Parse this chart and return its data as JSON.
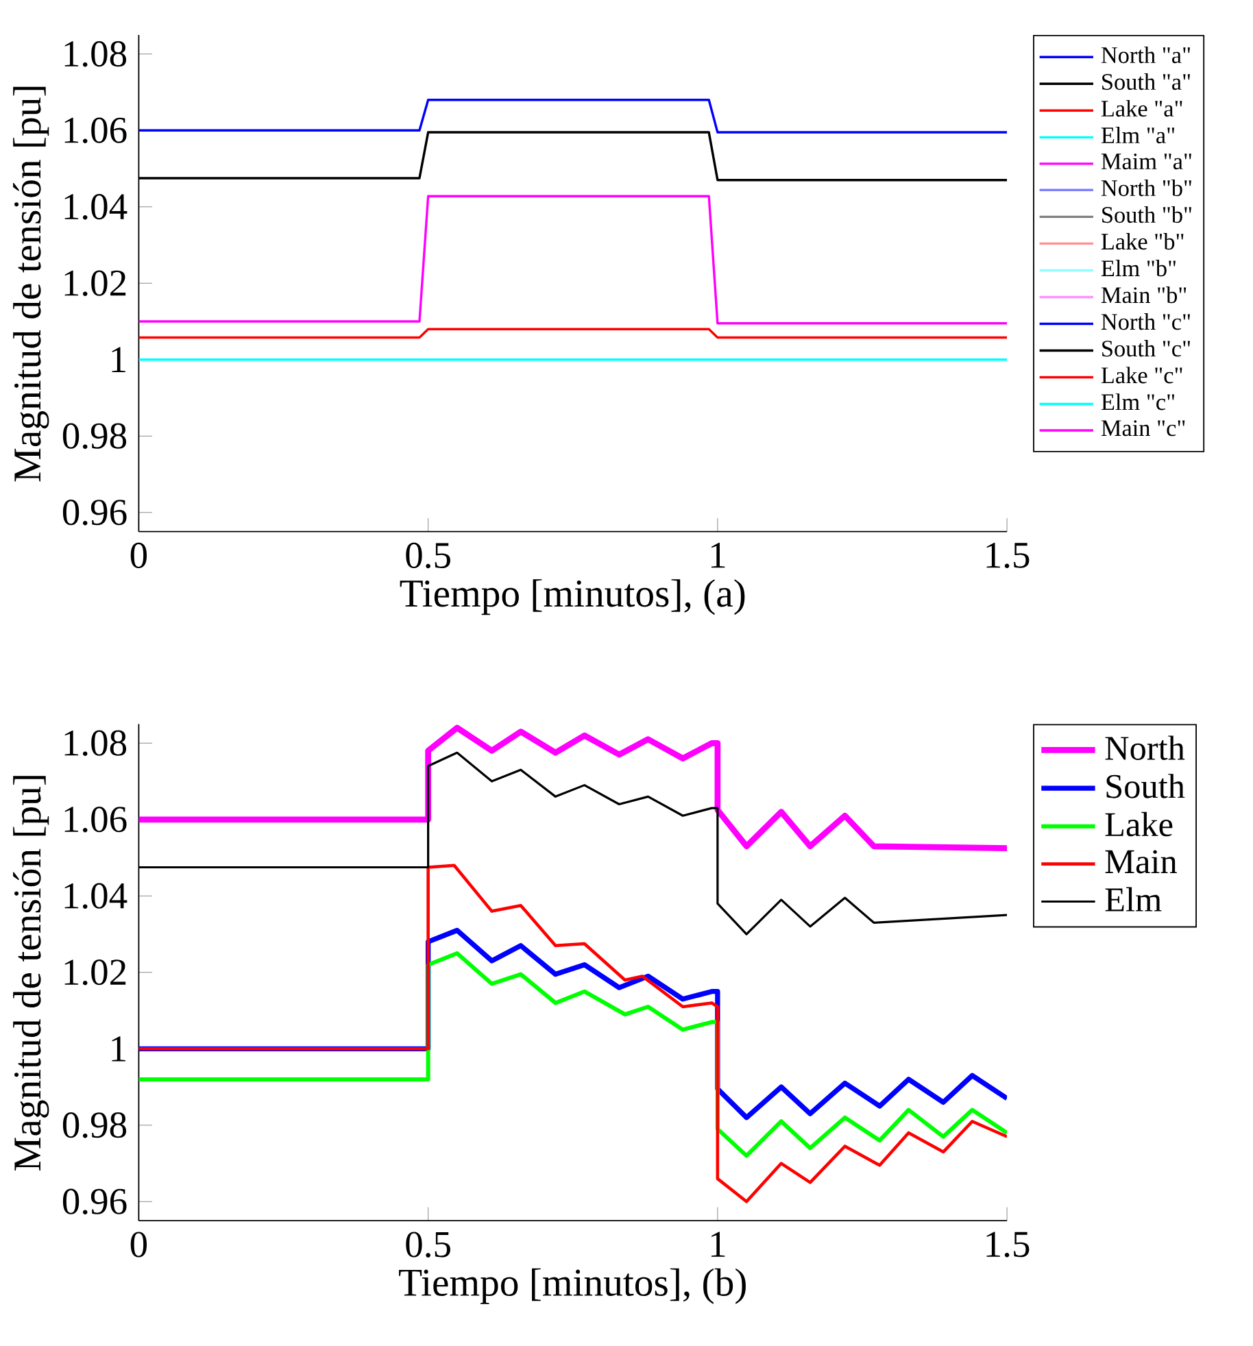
{
  "chart_data": [
    {
      "type": "line",
      "xlabel": "Tiempo [minutos],  (a)",
      "ylabel": "Magnitud de tensión [pu]",
      "xlim": [
        0,
        1.5
      ],
      "ylim": [
        0.955,
        1.085
      ],
      "xticks": [
        0,
        0.5,
        1,
        1.5
      ],
      "yticks": [
        0.96,
        0.98,
        1,
        1.02,
        1.04,
        1.06,
        1.08
      ],
      "legend": "right",
      "series": [
        {
          "name": "North \"a\"",
          "color": "#0000ff",
          "x": [
            0,
            0.485,
            0.5,
            0.985,
            1.0,
            1.5
          ],
          "values": [
            1.06,
            1.06,
            1.068,
            1.068,
            1.0595,
            1.0595
          ]
        },
        {
          "name": "South \"a\"",
          "color": "#000000",
          "x": [
            0,
            0.485,
            0.5,
            0.985,
            1.0,
            1.5
          ],
          "values": [
            1.0475,
            1.0475,
            1.0595,
            1.0595,
            1.047,
            1.047
          ]
        },
        {
          "name": "Lake \"a\"",
          "color": "#ff0000",
          "x": [
            0,
            0.485,
            0.5,
            0.985,
            1.0,
            1.5
          ],
          "values": [
            1.0058,
            1.0058,
            1.008,
            1.008,
            1.0058,
            1.0058
          ]
        },
        {
          "name": "Elm \"a\"",
          "color": "#00ffff",
          "x": [
            0,
            1.5
          ],
          "values": [
            1.0,
            1.0
          ]
        },
        {
          "name": "Maim \"a\"",
          "color": "#ff00ff",
          "x": [
            0,
            0.485,
            0.5,
            0.985,
            1.0,
            1.5
          ],
          "values": [
            1.01,
            1.01,
            1.0428,
            1.0428,
            1.0095,
            1.0095
          ]
        },
        {
          "name": "North \"b\"",
          "color": "#8080ff"
        },
        {
          "name": "South \"b\"",
          "color": "#808080"
        },
        {
          "name": "Lake \"b\"",
          "color": "#ff9090"
        },
        {
          "name": "Elm \"b\"",
          "color": "#90ffff"
        },
        {
          "name": "Main \"b\"",
          "color": "#ff90ff"
        },
        {
          "name": "North \"c\"",
          "color": "#0000ff"
        },
        {
          "name": "South \"c\"",
          "color": "#000000"
        },
        {
          "name": "Lake \"c\"",
          "color": "#ff0000"
        },
        {
          "name": "Elm \"c\"",
          "color": "#00ffff"
        },
        {
          "name": "Main \"c\"",
          "color": "#ff00ff"
        }
      ]
    },
    {
      "type": "line",
      "xlabel": "Tiempo [minutos],  (b)",
      "ylabel": "Magnitud de tensión [pu]",
      "xlim": [
        0,
        1.5
      ],
      "ylim": [
        0.955,
        1.085
      ],
      "xticks": [
        0,
        0.5,
        1,
        1.5
      ],
      "yticks": [
        0.96,
        0.98,
        1,
        1.02,
        1.04,
        1.06,
        1.08
      ],
      "legend": "right",
      "series": [
        {
          "name": "North",
          "color": "#ff00ff",
          "x": [
            0,
            0.5,
            0.5,
            0.55,
            0.61,
            0.66,
            0.72,
            0.77,
            0.83,
            0.88,
            0.94,
            0.99,
            1.0,
            1.0,
            1.05,
            1.11,
            1.16,
            1.22,
            1.27,
            1.5
          ],
          "values": [
            1.06,
            1.06,
            1.078,
            1.084,
            1.078,
            1.083,
            1.0775,
            1.082,
            1.077,
            1.081,
            1.076,
            1.08,
            1.08,
            1.0625,
            1.053,
            1.062,
            1.053,
            1.061,
            1.053,
            1.0525
          ]
        },
        {
          "name": "South",
          "color": "#0000ff",
          "x": [
            0,
            0.5,
            0.5,
            0.55,
            0.61,
            0.66,
            0.72,
            0.77,
            0.83,
            0.88,
            0.94,
            0.99,
            1.0,
            1.0,
            1.05,
            1.11,
            1.16,
            1.22,
            1.28,
            1.33,
            1.39,
            1.44,
            1.5
          ],
          "values": [
            1.0,
            1.0,
            1.028,
            1.031,
            1.023,
            1.027,
            1.0195,
            1.022,
            1.016,
            1.019,
            1.013,
            1.015,
            1.015,
            0.9895,
            0.982,
            0.99,
            0.983,
            0.991,
            0.985,
            0.992,
            0.986,
            0.993,
            0.987
          ]
        },
        {
          "name": "Lake",
          "color": "#00ff00",
          "x": [
            0,
            0.5,
            0.5,
            0.55,
            0.61,
            0.66,
            0.72,
            0.77,
            0.84,
            0.88,
            0.94,
            0.99,
            1.0,
            1.0,
            1.05,
            1.11,
            1.16,
            1.22,
            1.28,
            1.33,
            1.39,
            1.44,
            1.5
          ],
          "values": [
            0.992,
            0.992,
            1.022,
            1.025,
            1.017,
            1.0195,
            1.012,
            1.015,
            1.009,
            1.011,
            1.005,
            1.007,
            1.007,
            0.979,
            0.972,
            0.981,
            0.974,
            0.982,
            0.976,
            0.984,
            0.977,
            0.984,
            0.978
          ]
        },
        {
          "name": "Main",
          "color": "#ff0000",
          "x": [
            0,
            0.5,
            0.5,
            0.545,
            0.61,
            0.66,
            0.72,
            0.77,
            0.84,
            0.87,
            0.94,
            0.99,
            1.0,
            1.0,
            1.05,
            1.11,
            1.16,
            1.22,
            1.28,
            1.33,
            1.39,
            1.44,
            1.5
          ],
          "values": [
            1.0,
            1.0,
            1.0475,
            1.048,
            1.036,
            1.0375,
            1.027,
            1.0275,
            1.018,
            1.019,
            1.011,
            1.012,
            1.011,
            0.966,
            0.96,
            0.97,
            0.965,
            0.9745,
            0.9695,
            0.978,
            0.973,
            0.981,
            0.977
          ]
        },
        {
          "name": "Elm",
          "color": "#000000",
          "x": [
            0,
            0.5,
            0.5,
            0.55,
            0.61,
            0.66,
            0.72,
            0.77,
            0.83,
            0.88,
            0.94,
            0.99,
            1.0,
            1.0,
            1.05,
            1.11,
            1.16,
            1.22,
            1.27,
            1.5
          ],
          "values": [
            1.0475,
            1.0475,
            1.074,
            1.0775,
            1.07,
            1.073,
            1.066,
            1.069,
            1.064,
            1.066,
            1.061,
            1.063,
            1.063,
            1.038,
            1.03,
            1.039,
            1.032,
            1.0395,
            1.033,
            1.035
          ]
        }
      ]
    }
  ]
}
